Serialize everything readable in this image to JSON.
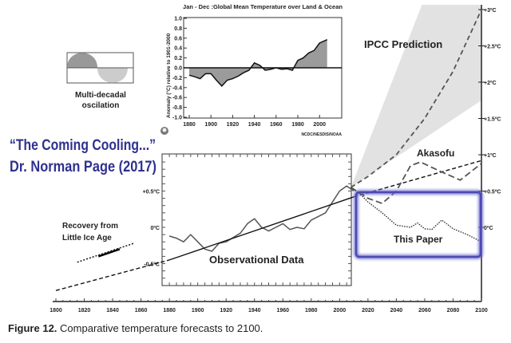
{
  "chart_data": [
    {
      "type": "line",
      "title": "Comparative temperature forecasts to 2100",
      "xlabel": "",
      "ylabel": "",
      "xlim": [
        1800,
        2100
      ],
      "ylim": [
        -1.0,
        3.0
      ],
      "x_ticks": [
        "1800",
        "1820",
        "1840",
        "1860",
        "1880",
        "1900",
        "1920",
        "1940",
        "1960",
        "1980",
        "2000",
        "2020",
        "2040",
        "2060",
        "2080",
        "2100"
      ],
      "y_ticks_right": [
        "+3ºC",
        "+2.5ºC",
        "+2ºC",
        "+1.5ºC",
        "+1ºC",
        "+0.5ºC",
        "0ºC"
      ],
      "y_ticks_left": [
        "+0.5ºC",
        "0ºC",
        "-0.5ºC"
      ],
      "series": [
        {
          "name": "Observational Data",
          "x": [
            1880,
            1885,
            1890,
            1895,
            1900,
            1905,
            1910,
            1915,
            1920,
            1930,
            1935,
            1940,
            1945,
            1950,
            1955,
            1960,
            1965,
            1970,
            1975,
            1980,
            1985,
            1990,
            1995,
            2000,
            2005,
            2010
          ],
          "values": [
            -0.12,
            -0.15,
            -0.2,
            -0.1,
            -0.2,
            -0.3,
            -0.33,
            -0.22,
            -0.2,
            -0.08,
            0.05,
            0.12,
            0.0,
            -0.05,
            0.0,
            0.05,
            -0.03,
            0.0,
            -0.02,
            0.1,
            0.15,
            0.2,
            0.35,
            0.5,
            0.57,
            0.5
          ]
        },
        {
          "name": "Trend",
          "x": [
            1880,
            2010
          ],
          "values": [
            -0.45,
            0.42
          ]
        },
        {
          "name": "Trend extension",
          "x": [
            2010,
            2100
          ],
          "values": [
            0.42,
            0.92
          ]
        },
        {
          "name": "Recovery from Little Ice Age",
          "x": [
            1800,
            1880
          ],
          "values": [
            -0.87,
            -0.45
          ]
        },
        {
          "name": "IPCC Prediction",
          "x": [
            2008,
            2020,
            2040,
            2060,
            2080,
            2100
          ],
          "values": [
            0.55,
            0.7,
            1.0,
            1.5,
            2.15,
            3.0
          ]
        },
        {
          "name": "Akasofu",
          "x": [
            2008,
            2020,
            2030,
            2040,
            2050,
            2057,
            2070,
            2085,
            2100
          ],
          "values": [
            0.55,
            0.4,
            0.33,
            0.5,
            0.85,
            0.9,
            0.78,
            0.65,
            0.88
          ]
        },
        {
          "name": "This Paper",
          "x": [
            2008,
            2015,
            2020,
            2030,
            2040,
            2050,
            2055,
            2060,
            2065,
            2072,
            2080,
            2090,
            2100
          ],
          "values": [
            0.55,
            0.45,
            0.35,
            0.2,
            0.03,
            0.0,
            0.06,
            -0.02,
            -0.03,
            0.1,
            -0.02,
            -0.1,
            -0.2
          ]
        },
        {
          "name": "Recovery segment",
          "x": [
            1815,
            1855
          ],
          "values": [
            -0.48,
            -0.22
          ]
        }
      ],
      "ipcc_band": {
        "lower": [
          [
            2008,
            0.55
          ],
          [
            2100,
            1.75
          ]
        ],
        "upper": [
          [
            2008,
            0.55
          ],
          [
            2058,
            3.0
          ]
        ]
      },
      "annotations": {
        "ipcc": "IPCC Prediction",
        "akasofu": "Akasofu",
        "this_paper": "This Paper",
        "observational": "Observational Data",
        "recovery": [
          "Recovery from",
          "Little Ice Age"
        ],
        "oscillation": [
          "Multi-decadal",
          "oscilation"
        ],
        "headline": [
          "“The Coming Cooling...”",
          "Dr. Norman Page (2017)"
        ]
      },
      "highlight_color": "#4a4ab0",
      "headline_color": "#2e318f"
    },
    {
      "type": "area",
      "title": "Jan - Dec :Global Mean Temperature over Land & Ocean",
      "ylabel": "Anomaly (°C) relative to 1901-2000",
      "xlim": [
        1880,
        2008
      ],
      "ylim": [
        -1.0,
        1.0
      ],
      "x_ticks": [
        "1880",
        "1900",
        "1920",
        "1940",
        "1960",
        "1980",
        "2000"
      ],
      "y_ticks": [
        "1.0",
        "0.8",
        "0.6",
        "0.4",
        "0.2",
        "0.0",
        "-0.2",
        "-0.4",
        "-0.6",
        "-0.8",
        "-1.0"
      ],
      "x": [
        1880,
        1885,
        1890,
        1895,
        1900,
        1905,
        1910,
        1915,
        1920,
        1925,
        1930,
        1935,
        1940,
        1945,
        1950,
        1955,
        1960,
        1965,
        1970,
        1975,
        1980,
        1985,
        1990,
        1995,
        2000,
        2007
      ],
      "values": [
        -0.15,
        -0.18,
        -0.22,
        -0.12,
        -0.12,
        -0.25,
        -0.37,
        -0.25,
        -0.22,
        -0.17,
        -0.1,
        -0.05,
        0.1,
        0.05,
        -0.05,
        -0.03,
        0.0,
        -0.03,
        -0.02,
        -0.05,
        0.15,
        0.2,
        0.3,
        0.35,
        0.5,
        0.57
      ],
      "source": "NCDC/NESDIS/NOAA"
    }
  ],
  "caption": {
    "label": "Figure 12.",
    "text": " Comparative temperature forecasts to 2100."
  }
}
